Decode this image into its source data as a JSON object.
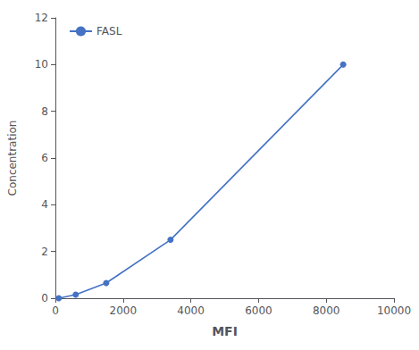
{
  "chart_data": {
    "type": "line",
    "x": [
      100,
      600,
      1500,
      3400,
      8500
    ],
    "series": [
      {
        "name": "FASL",
        "color": "#4472C4",
        "values": [
          0.0,
          0.15,
          0.65,
          2.5,
          10.0
        ]
      }
    ],
    "xlabel": "MFI",
    "ylabel": "Concentration",
    "xlim": [
      0,
      10000
    ],
    "ylim": [
      0,
      12
    ],
    "xticks": [
      0,
      2000,
      4000,
      6000,
      8000,
      10000
    ],
    "yticks": [
      0,
      2,
      4,
      6,
      8,
      10,
      12
    ],
    "grid": false,
    "legend": "upper left",
    "marker": "circle"
  }
}
